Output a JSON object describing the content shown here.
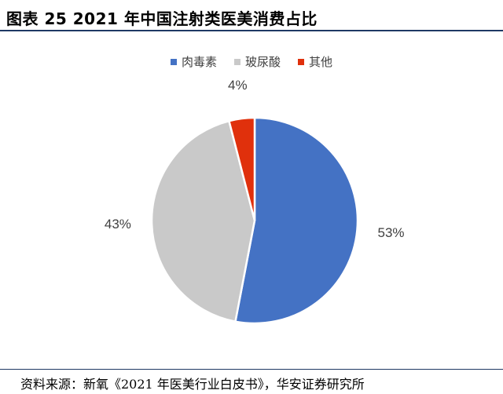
{
  "header": {
    "title": "图表 25 2021 年中国注射类医美消费占比"
  },
  "chart_data": {
    "type": "pie",
    "title": "",
    "categories": [
      "肉毒素",
      "玻尿酸",
      "其他"
    ],
    "values": [
      53,
      43,
      4
    ],
    "labels": [
      "53%",
      "43%",
      "4%"
    ],
    "colors": [
      "#4472c4",
      "#c9c9c9",
      "#e0300c"
    ],
    "legend_position": "top"
  },
  "footer": {
    "source": "资料来源：新氧《2021 年医美行业白皮书》，华安证券研究所"
  }
}
